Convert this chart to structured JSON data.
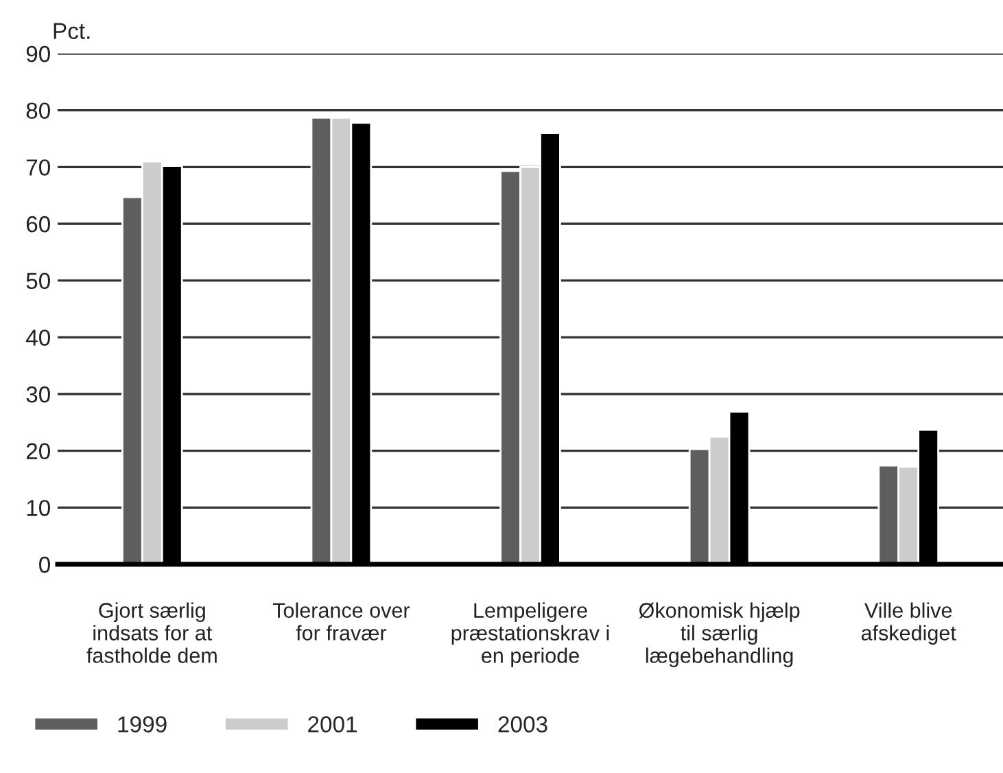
{
  "chart_data": {
    "type": "bar",
    "ylabel": "Pct.",
    "categories": [
      "Gjort særlig\nindsats for at\nfastholde dem",
      "Tolerance over\nfor fravær",
      "Lempeligere\npræstationskrav i\nen periode",
      "Økonomisk hjælp\ntil særlig\nlægebehandling",
      "Ville blive\nafskediget"
    ],
    "series": [
      {
        "name": "1999",
        "color": "#5e5e5e",
        "values": [
          64.7,
          78.7,
          69.3,
          20.3,
          17.4
        ]
      },
      {
        "name": "2001",
        "color": "#cccccc",
        "values": [
          71.0,
          78.7,
          70.0,
          22.5,
          17.2
        ]
      },
      {
        "name": "2003",
        "color": "#000000",
        "values": [
          70.2,
          77.8,
          76.0,
          26.9,
          23.7
        ]
      }
    ],
    "ylim": [
      0,
      90
    ],
    "yticks": [
      0,
      10,
      20,
      30,
      40,
      50,
      60,
      70,
      80,
      90
    ],
    "grid": "y",
    "legend": "bottom"
  }
}
